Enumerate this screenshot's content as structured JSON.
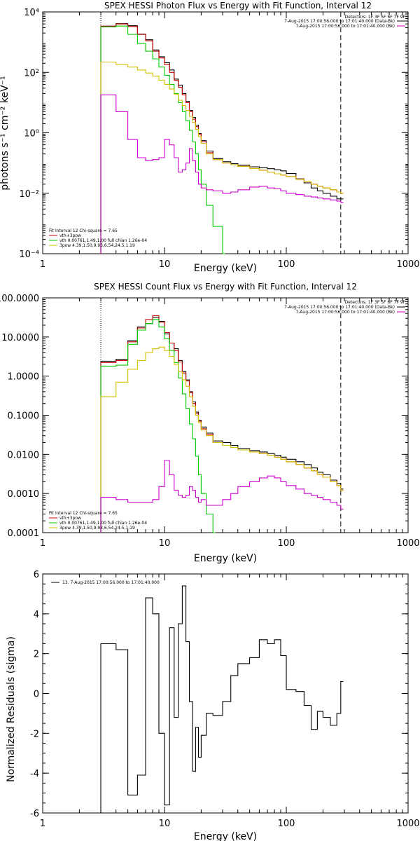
{
  "chart_data": [
    {
      "type": "line",
      "title": "SPEX HESSI Photon Flux vs Energy with Fit Function, Interval 12",
      "xlabel": "Energy (keV)",
      "ylabel": "photons s⁻¹ cm⁻² keV⁻¹",
      "xscale": "log",
      "yscale": "log",
      "xlim": [
        1,
        1000
      ],
      "ylim": [
        0.0001,
        10000
      ],
      "xticks": [
        "1",
        "10",
        "100",
        "1000"
      ],
      "yticks": [
        "10⁻⁴",
        "10⁻²",
        "10⁰",
        "10²",
        "10⁴"
      ],
      "legend_top": {
        "header": "Detectors: 1F 3F 5F 6F 7F 9F",
        "entries": [
          {
            "label": "7-Aug-2015 17:00:56.000 to 17:01:40.000 (Data-Bk)",
            "color": "#000000"
          },
          {
            "label": "7-Aug-2015 17:00:56.000 to 17:01:40.000 (Bk)",
            "color": "#cc00cc"
          }
        ]
      },
      "legend_bottom": {
        "header": "Fit Interval 12   Chi-square = 7.65",
        "entries": [
          {
            "label": "vth+3pow",
            "color": "#cc0000"
          },
          {
            "label": "vth 0.00761,1.49,1.00  full chian 1.26e-04",
            "color": "#00cc00"
          },
          {
            "label": "3pow 4.39,1.50,9.93,6.54,24.5,1.19",
            "color": "#d4c000"
          }
        ]
      },
      "markers": {
        "dotted_x": 3,
        "dashed_x": 280
      },
      "series": [
        {
          "name": "Data-Bk",
          "color": "#000000",
          "x": [
            3,
            4,
            5,
            6,
            7,
            8,
            9,
            10,
            11,
            12,
            13,
            14,
            15,
            16,
            17,
            18,
            19,
            20,
            22,
            25,
            30,
            35,
            40,
            50,
            60,
            70,
            80,
            90,
            100,
            120,
            140,
            160,
            180,
            200,
            230,
            260,
            280
          ],
          "y": [
            3300,
            4100,
            3500,
            1850,
            1200,
            550,
            330,
            210,
            120,
            60,
            38,
            20,
            11,
            5.5,
            3.2,
            1.8,
            0.95,
            0.55,
            0.25,
            0.14,
            0.11,
            0.095,
            0.085,
            0.075,
            0.07,
            0.065,
            0.06,
            0.055,
            0.045,
            0.03,
            0.022,
            0.015,
            0.012,
            0.01,
            0.008,
            0.0065,
            0.0065
          ]
        },
        {
          "name": "vth+3pow",
          "color": "#cc0000",
          "x": [
            3,
            4,
            5,
            6,
            7,
            8,
            9,
            10,
            11,
            12,
            13,
            14,
            15,
            16,
            17,
            18,
            19,
            20,
            22,
            25,
            30,
            35,
            40,
            50,
            60,
            70,
            80,
            90,
            100,
            120,
            140,
            160,
            180,
            200,
            230,
            260,
            280
          ],
          "y": [
            3400,
            4000,
            3300,
            1800,
            1100,
            500,
            300,
            180,
            100,
            55,
            32,
            18,
            10,
            5,
            2.8,
            1.6,
            0.9,
            0.5,
            0.22,
            0.13,
            0.1,
            0.088,
            0.078,
            0.066,
            0.058,
            0.05,
            0.044,
            0.04,
            0.036,
            0.029,
            0.024,
            0.02,
            0.017,
            0.015,
            0.013,
            0.011,
            0.01
          ]
        },
        {
          "name": "vth",
          "color": "#00cc00",
          "x": [
            3,
            4,
            5,
            6,
            7,
            8,
            9,
            10,
            11,
            12,
            13,
            14,
            15,
            16,
            17,
            18,
            19,
            20,
            22,
            25,
            30
          ],
          "y": [
            3200,
            3400,
            1800,
            900,
            500,
            280,
            150,
            80,
            40,
            20,
            10,
            5,
            2.5,
            1.2,
            0.5,
            0.2,
            0.06,
            0.02,
            0.004,
            0.0008,
            8e-05
          ]
        },
        {
          "name": "3pow",
          "color": "#d4c000",
          "x": [
            3,
            4,
            5,
            6,
            7,
            8,
            9,
            10,
            11,
            12,
            13,
            14,
            15,
            16,
            17,
            18,
            19,
            20,
            22,
            25,
            30,
            35,
            40,
            50,
            60,
            70,
            80,
            90,
            100,
            120,
            140,
            160,
            180,
            200,
            230,
            260,
            280
          ],
          "y": [
            220,
            180,
            150,
            120,
            95,
            75,
            55,
            40,
            28,
            19,
            12,
            8,
            5.5,
            3.5,
            2.2,
            1.3,
            0.75,
            0.45,
            0.2,
            0.13,
            0.1,
            0.088,
            0.078,
            0.066,
            0.058,
            0.05,
            0.044,
            0.04,
            0.036,
            0.029,
            0.024,
            0.02,
            0.017,
            0.015,
            0.013,
            0.011,
            0.01
          ]
        },
        {
          "name": "Bk",
          "color": "#cc00cc",
          "x": [
            3,
            4,
            5,
            6,
            7,
            8,
            9,
            10,
            11,
            12,
            13,
            14,
            15,
            16,
            17,
            18,
            19,
            20,
            22,
            25,
            30,
            35,
            40,
            50,
            60,
            70,
            80,
            90,
            100,
            120,
            140,
            160,
            180,
            200,
            230,
            260,
            280
          ],
          "y": [
            18,
            5,
            0.6,
            0.15,
            0.12,
            0.13,
            0.15,
            0.6,
            0.4,
            0.15,
            0.05,
            0.06,
            0.1,
            0.3,
            0.12,
            0.05,
            0.02,
            0.015,
            0.013,
            0.012,
            0.01,
            0.011,
            0.013,
            0.016,
            0.017,
            0.015,
            0.014,
            0.012,
            0.01,
            0.009,
            0.008,
            0.0075,
            0.007,
            0.0065,
            0.006,
            0.0055,
            0.005
          ]
        }
      ]
    },
    {
      "type": "line",
      "title": "SPEX HESSI Count Flux vs Energy with Fit Function, Interval 12",
      "xlabel": "Energy (keV)",
      "ylabel": "",
      "xscale": "log",
      "yscale": "log",
      "xlim": [
        1,
        1000
      ],
      "ylim": [
        0.0001,
        100
      ],
      "xticks": [
        "1",
        "10",
        "100",
        "1000"
      ],
      "yticks": [
        "0.0001",
        "0.0010",
        "0.0100",
        "0.1000",
        "1.0000",
        "10.0000",
        "100.0000"
      ],
      "legend_top": {
        "header": "Detectors: 1F 3F 5F 6F 7F 9F",
        "entries": [
          {
            "label": "7-Aug-2015 17:00:56.000 to 17:01:40.000 (Data-Bk)",
            "color": "#000000"
          },
          {
            "label": "7-Aug-2015 17:00:56.000 to 17:01:40.000 (Bk)",
            "color": "#cc00cc"
          }
        ]
      },
      "legend_bottom": {
        "header": "Fit Interval 12   Chi-square = 7.65",
        "entries": [
          {
            "label": "vth+3pow",
            "color": "#cc0000"
          },
          {
            "label": "vth 0.00761,1.49,1.00  full chian 1.26e-04",
            "color": "#00cc00"
          },
          {
            "label": "3pow 4.39,1.50,9.93,6.54,24.5,1.19",
            "color": "#d4c000"
          }
        ]
      },
      "markers": {
        "dotted_x": 3,
        "dashed_x": 280
      },
      "series": [
        {
          "name": "Data-Bk",
          "color": "#000000",
          "x": [
            3,
            4,
            5,
            6,
            7,
            8,
            9,
            10,
            11,
            12,
            13,
            14,
            15,
            16,
            17,
            18,
            19,
            20,
            22,
            25,
            30,
            35,
            40,
            50,
            60,
            70,
            80,
            90,
            100,
            120,
            140,
            160,
            180,
            200,
            230,
            260,
            280
          ],
          "y": [
            2.4,
            2.7,
            8,
            18,
            22,
            32,
            25,
            12,
            7,
            5,
            2.5,
            1.3,
            0.8,
            0.4,
            0.22,
            0.12,
            0.075,
            0.05,
            0.035,
            0.022,
            0.02,
            0.017,
            0.014,
            0.0125,
            0.0115,
            0.0105,
            0.0095,
            0.0085,
            0.0075,
            0.0065,
            0.0055,
            0.0045,
            0.0035,
            0.003,
            0.0022,
            0.0018,
            0.0013
          ]
        },
        {
          "name": "vth+3pow",
          "color": "#cc0000",
          "x": [
            3,
            4,
            5,
            6,
            7,
            8,
            9,
            10,
            11,
            12,
            13,
            14,
            15,
            16,
            17,
            18,
            19,
            20,
            22,
            25,
            30,
            35,
            40,
            50,
            60,
            70,
            80,
            90,
            100,
            120,
            140,
            160,
            180,
            200,
            230,
            260,
            280
          ],
          "y": [
            2.2,
            2.5,
            7.5,
            17,
            28,
            35,
            24,
            13,
            7,
            4.5,
            2.3,
            1.2,
            0.75,
            0.38,
            0.2,
            0.11,
            0.07,
            0.045,
            0.032,
            0.02,
            0.017,
            0.015,
            0.013,
            0.0115,
            0.0105,
            0.0095,
            0.0085,
            0.0075,
            0.0065,
            0.0055,
            0.0045,
            0.0038,
            0.0031,
            0.0026,
            0.002,
            0.0016,
            0.0012
          ]
        },
        {
          "name": "vth",
          "color": "#00cc00",
          "x": [
            3,
            4,
            5,
            6,
            7,
            8,
            9,
            10,
            11,
            12,
            13,
            14,
            15,
            16,
            17,
            18,
            19,
            20,
            22,
            25
          ],
          "y": [
            1.8,
            1.9,
            6.5,
            15,
            22,
            28,
            18,
            9,
            4.5,
            2.2,
            0.9,
            0.35,
            0.15,
            0.06,
            0.025,
            0.009,
            0.003,
            0.001,
            0.0003,
            5e-05
          ]
        },
        {
          "name": "3pow",
          "color": "#d4c000",
          "x": [
            3,
            4,
            5,
            6,
            7,
            8,
            9,
            10,
            11,
            12,
            13,
            14,
            15,
            16,
            17,
            18,
            19,
            20,
            22,
            25,
            30,
            35,
            40,
            50,
            60,
            70,
            80,
            90,
            100,
            120,
            140,
            160,
            180,
            200,
            230,
            260,
            280
          ],
          "y": [
            0.3,
            0.7,
            1.5,
            2.5,
            4,
            5,
            5.5,
            4.5,
            3.2,
            2,
            1.3,
            0.8,
            0.55,
            0.3,
            0.17,
            0.1,
            0.065,
            0.042,
            0.03,
            0.02,
            0.017,
            0.015,
            0.013,
            0.0115,
            0.0105,
            0.0095,
            0.0085,
            0.0075,
            0.0065,
            0.0055,
            0.0045,
            0.0038,
            0.0031,
            0.0026,
            0.002,
            0.0016,
            0.0012
          ]
        },
        {
          "name": "Bk",
          "color": "#cc00cc",
          "x": [
            3,
            4,
            5,
            6,
            7,
            8,
            9,
            10,
            11,
            12,
            13,
            14,
            15,
            16,
            17,
            18,
            19,
            20,
            22,
            25,
            30,
            35,
            40,
            50,
            60,
            70,
            80,
            90,
            100,
            120,
            140,
            160,
            180,
            200,
            230,
            260,
            280
          ],
          "y": [
            0.0008,
            0.0007,
            0.0006,
            0.0006,
            0.0006,
            0.0007,
            0.0015,
            0.007,
            0.003,
            0.0012,
            0.0009,
            0.0008,
            0.0009,
            0.0015,
            0.0012,
            0.0008,
            0.0006,
            0.0007,
            0.0005,
            0.0005,
            0.0007,
            0.001,
            0.0015,
            0.002,
            0.0025,
            0.0028,
            0.0025,
            0.002,
            0.0016,
            0.0013,
            0.001,
            0.0009,
            0.0008,
            0.0007,
            0.0006,
            0.0005,
            0.0004
          ]
        }
      ]
    },
    {
      "type": "line",
      "title": "",
      "xlabel": "Energy (keV)",
      "ylabel": "Normalized Residuals (sigma)",
      "xscale": "log",
      "yscale": "linear",
      "xlim": [
        1,
        1000
      ],
      "ylim": [
        -6,
        6
      ],
      "xticks": [
        "1",
        "10",
        "100",
        "1000"
      ],
      "yticks": [
        "-6",
        "-4",
        "-2",
        "0",
        "2",
        "4",
        "6"
      ],
      "legend_top": {
        "entries": [
          {
            "label": "13.  7-Aug-2015 17:00:56.000 to 17:01:40.000",
            "color": "#000000"
          }
        ]
      },
      "series": [
        {
          "name": "13.  7-Aug-2015 17:00:56.000 to 17:01:40.000",
          "color": "#000000",
          "x": [
            3,
            4,
            5,
            6,
            7,
            8,
            9,
            10,
            11,
            12,
            13,
            14,
            15,
            16,
            17,
            18,
            19,
            20,
            22,
            25,
            30,
            35,
            40,
            50,
            60,
            70,
            80,
            90,
            100,
            120,
            140,
            160,
            180,
            200,
            230,
            260,
            280
          ],
          "y": [
            2.5,
            2.2,
            -5.1,
            -4.1,
            4.8,
            4.0,
            -2.0,
            -5.6,
            3.3,
            -1.2,
            3.5,
            5.4,
            2.6,
            -0.4,
            -3.9,
            -1.7,
            -3.2,
            -2.1,
            -1.0,
            -1.1,
            -0.4,
            0.9,
            1.5,
            1.8,
            2.7,
            2.5,
            2.7,
            1.9,
            0.2,
            0.1,
            -0.6,
            -1.8,
            -0.9,
            -1.2,
            -1.6,
            -1.0,
            0.6
          ]
        }
      ]
    }
  ]
}
